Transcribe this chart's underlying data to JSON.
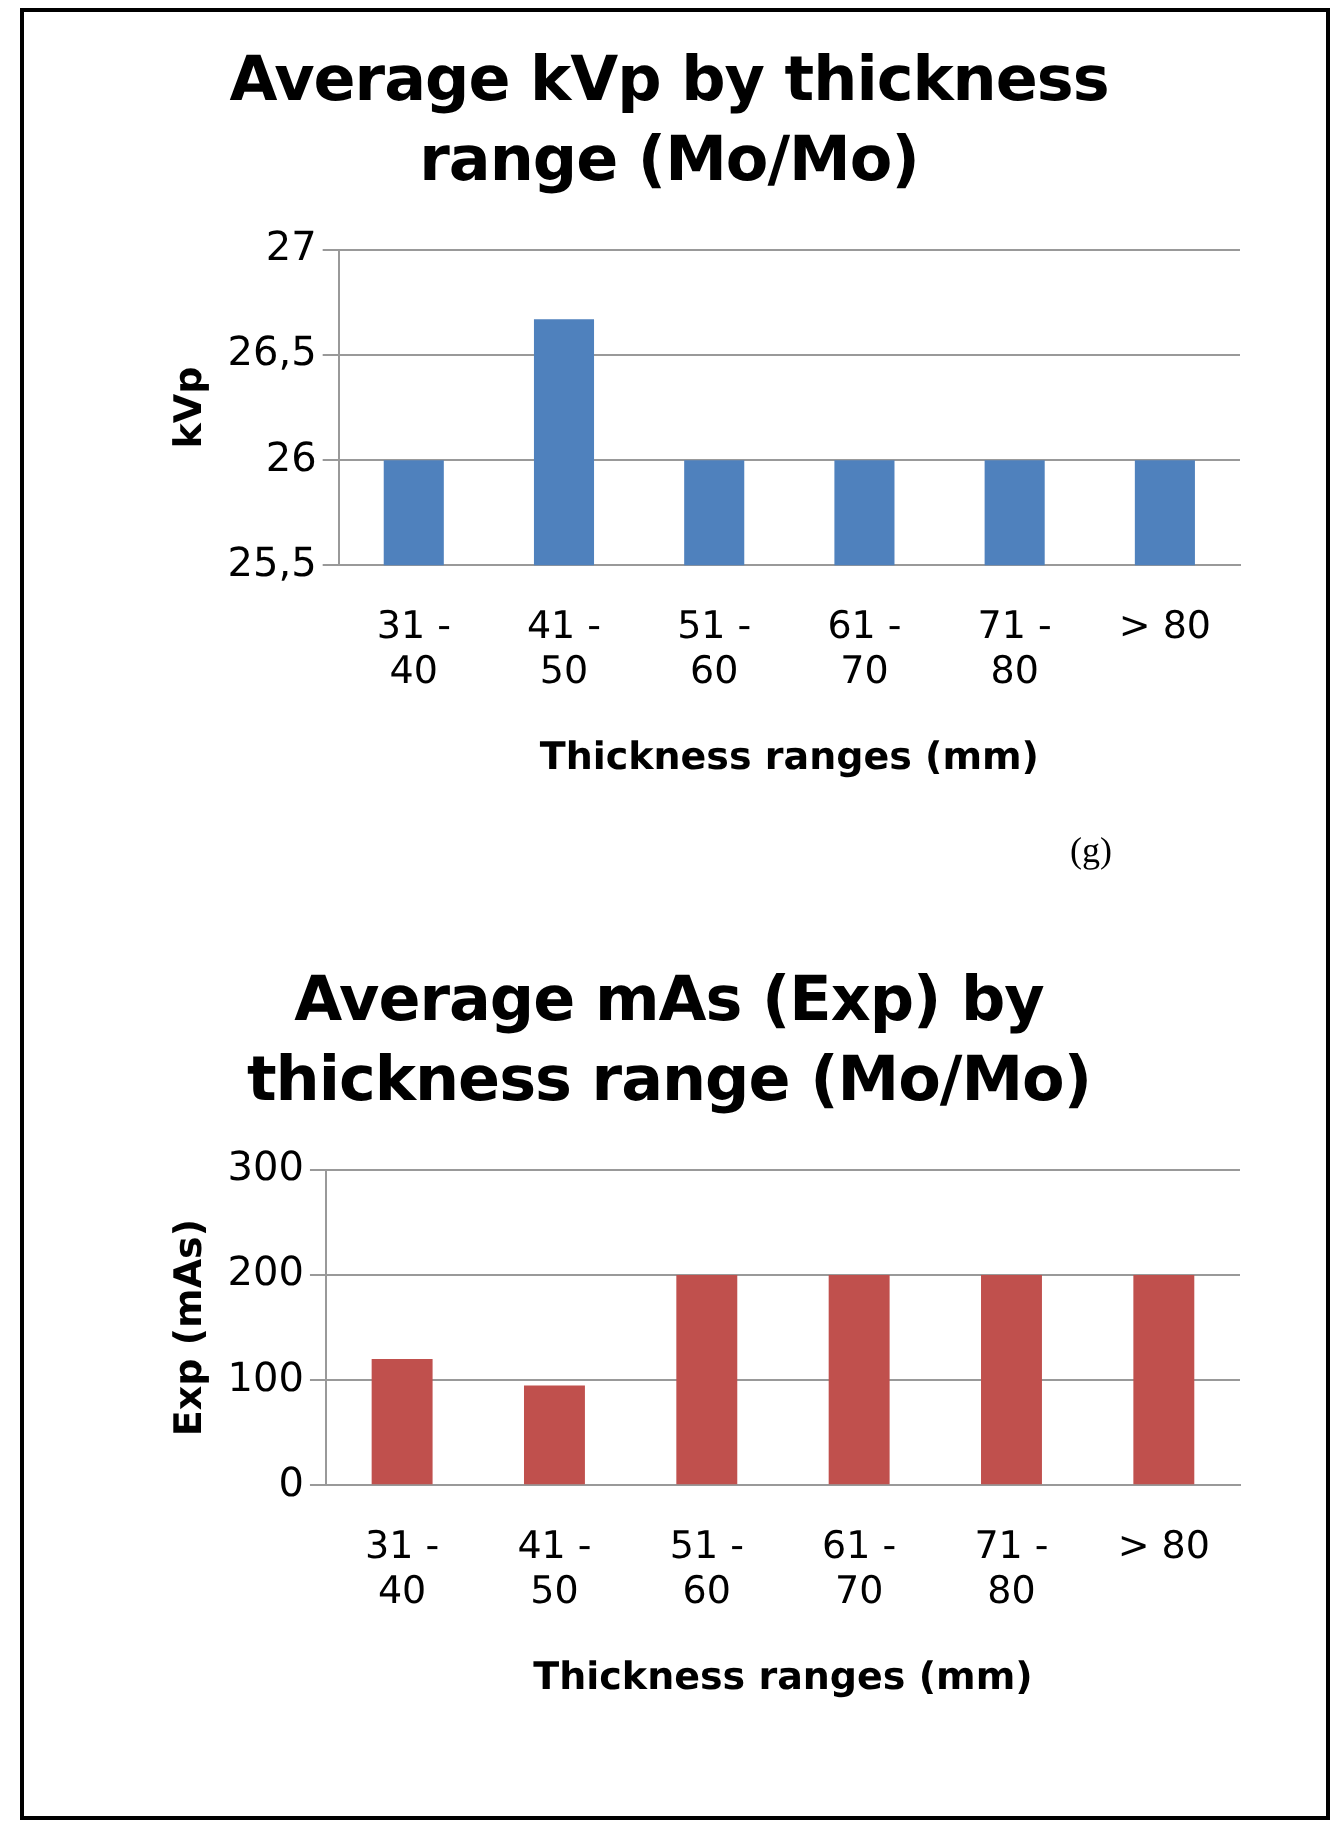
{
  "chart_data": [
    {
      "type": "bar",
      "title": "Average kVp by thickness range (Mo/Mo)",
      "xlabel": "Thickness ranges (mm)",
      "ylabel": "kVp",
      "categories": [
        "31 - 40",
        "41 - 50",
        "51 - 60",
        "61 - 70",
        "71 - 80",
        "> 80"
      ],
      "values": [
        26,
        26.67,
        26,
        26,
        26,
        26
      ],
      "color": "#4f81bd",
      "ylim": [
        25.5,
        27
      ],
      "yticks": [
        {
          "value": 25.5,
          "label": "25,5"
        },
        26,
        {
          "value": 26.5,
          "label": "26,5"
        },
        27
      ],
      "grid": "y",
      "annotations": [
        "(g)"
      ]
    },
    {
      "type": "bar",
      "title": "Average mAs (Exp) by thickness range (Mo/Mo)",
      "xlabel": "Thickness ranges (mm)",
      "ylabel": "Exp (mAs)",
      "categories": [
        "31 - 40",
        "41 - 50",
        "51 - 60",
        "61 - 70",
        "71 - 80",
        "> 80"
      ],
      "values": [
        120,
        95,
        200,
        200,
        200,
        200
      ],
      "color": "#c0504d",
      "ylim": [
        0,
        300
      ],
      "yticks": [
        0,
        100,
        200,
        300
      ],
      "grid": "y"
    }
  ]
}
